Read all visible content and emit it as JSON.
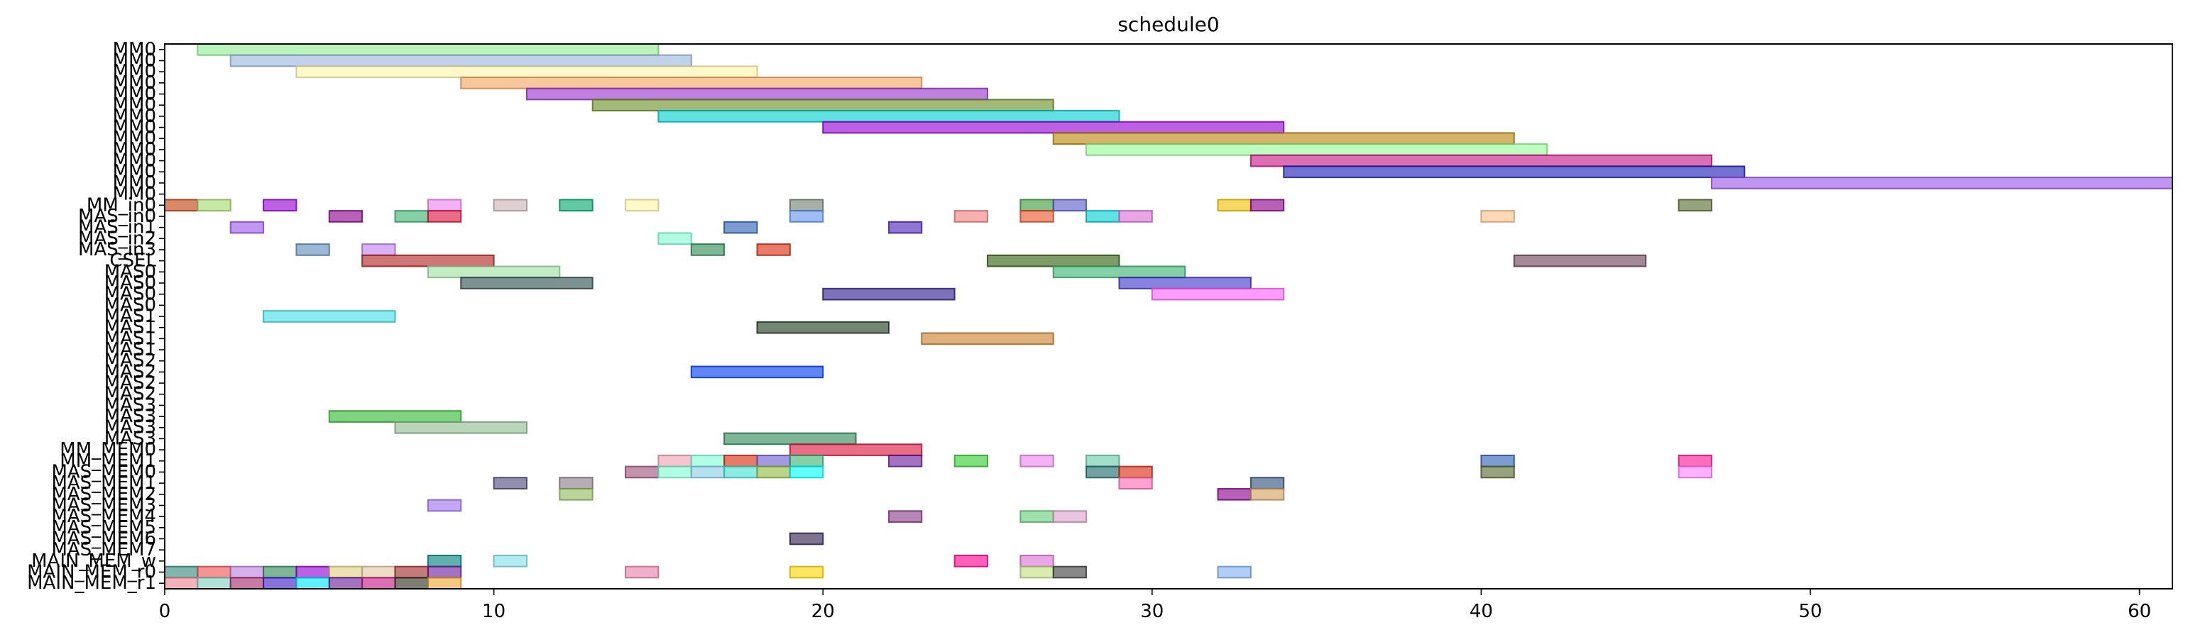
{
  "chart_data": {
    "type": "gantt",
    "title": "schedule0",
    "xlim": [
      0,
      61
    ],
    "x_ticks": [
      0,
      10,
      20,
      30,
      40,
      50,
      60
    ],
    "rows": [
      "MM0",
      "MM0",
      "MM0",
      "MM0",
      "MM0",
      "MM0",
      "MM0",
      "MM0",
      "MM0",
      "MM0",
      "MM0",
      "MM0",
      "MM0",
      "MM0",
      "MM_in0",
      "MAS_in0",
      "MAS_in1",
      "MAS_in2",
      "MAS_in3",
      "CSEL",
      "MAS0",
      "MAS0",
      "MAS0",
      "MAS0",
      "MAS1",
      "MAS1",
      "MAS1",
      "MAS1",
      "MAS2",
      "MAS2",
      "MAS2",
      "MAS2",
      "MAS3",
      "MAS3",
      "MAS3",
      "MAS3",
      "MM_MEM0",
      "MM_MEM1",
      "MAS_MEM0",
      "MAS_MEM1",
      "MAS_MEM2",
      "MAS_MEM3",
      "MAS_MEM4",
      "MAS_MEM5",
      "MAS_MEM6",
      "MAS_MEM7",
      "MAIN_MEM_w",
      "MAIN_MEM_r0",
      "MAIN_MEM_r1"
    ],
    "tasks": [
      {
        "row": 0,
        "start": 1,
        "end": 15,
        "color": "#90ee90"
      },
      {
        "row": 1,
        "start": 2,
        "end": 16,
        "color": "#9ab8dd"
      },
      {
        "row": 2,
        "start": 4,
        "end": 18,
        "color": "#fff3a8"
      },
      {
        "row": 3,
        "start": 9,
        "end": 23,
        "color": "#f4a460"
      },
      {
        "row": 4,
        "start": 11,
        "end": 25,
        "color": "#9932cc"
      },
      {
        "row": 5,
        "start": 13,
        "end": 27,
        "color": "#6b8e23"
      },
      {
        "row": 6,
        "start": 15,
        "end": 29,
        "color": "#00ced1"
      },
      {
        "row": 7,
        "start": 20,
        "end": 34,
        "color": "#9400d3"
      },
      {
        "row": 8,
        "start": 27,
        "end": 41,
        "color": "#b8860b"
      },
      {
        "row": 9,
        "start": 28,
        "end": 42,
        "color": "#98fb98"
      },
      {
        "row": 10,
        "start": 33,
        "end": 47,
        "color": "#c71585"
      },
      {
        "row": 11,
        "start": 34,
        "end": 48,
        "color": "#1c1cb8"
      },
      {
        "row": 12,
        "start": 47,
        "end": 61,
        "color": "#9955e8"
      },
      {
        "row": 14,
        "start": 0,
        "end": 1,
        "color": "#c2410c"
      },
      {
        "row": 14,
        "start": 1,
        "end": 2,
        "color": "#a4d96c"
      },
      {
        "row": 14,
        "start": 3,
        "end": 4,
        "color": "#9400d3"
      },
      {
        "row": 14,
        "start": 8,
        "end": 9,
        "color": "#ee82ee"
      },
      {
        "row": 14,
        "start": 10,
        "end": 11,
        "color": "#c9b3b3"
      },
      {
        "row": 14,
        "start": 12,
        "end": 13,
        "color": "#00a86b"
      },
      {
        "row": 14,
        "start": 14,
        "end": 15,
        "color": "#fff3a8"
      },
      {
        "row": 14,
        "start": 19,
        "end": 20,
        "color": "#708070"
      },
      {
        "row": 14,
        "start": 26,
        "end": 27,
        "color": "#3c9a3c"
      },
      {
        "row": 14,
        "start": 27,
        "end": 28,
        "color": "#5b5bc8"
      },
      {
        "row": 14,
        "start": 32,
        "end": 33,
        "color": "#f0c000"
      },
      {
        "row": 14,
        "start": 33,
        "end": 34,
        "color": "#8b008b"
      },
      {
        "row": 14,
        "start": 46,
        "end": 47,
        "color": "#556b2f"
      },
      {
        "row": 15,
        "start": 5,
        "end": 6,
        "color": "#8b008b"
      },
      {
        "row": 15,
        "start": 7,
        "end": 8,
        "color": "#3cb371"
      },
      {
        "row": 15,
        "start": 8,
        "end": 9,
        "color": "#dc143c"
      },
      {
        "row": 15,
        "start": 19,
        "end": 20,
        "color": "#6495ed"
      },
      {
        "row": 15,
        "start": 24,
        "end": 25,
        "color": "#f08080"
      },
      {
        "row": 15,
        "start": 26,
        "end": 27,
        "color": "#e9552c"
      },
      {
        "row": 15,
        "start": 28,
        "end": 29,
        "color": "#00ced1"
      },
      {
        "row": 15,
        "start": 29,
        "end": 30,
        "color": "#da70d6"
      },
      {
        "row": 15,
        "start": 40,
        "end": 41,
        "color": "#ffc08a"
      },
      {
        "row": 16,
        "start": 2,
        "end": 3,
        "color": "#9955e8"
      },
      {
        "row": 16,
        "start": 17,
        "end": 18,
        "color": "#2d5fb5"
      },
      {
        "row": 16,
        "start": 22,
        "end": 23,
        "color": "#4b22b8"
      },
      {
        "row": 17,
        "start": 15,
        "end": 16,
        "color": "#7fffd4"
      },
      {
        "row": 18,
        "start": 4,
        "end": 5,
        "color": "#5f8cbf"
      },
      {
        "row": 18,
        "start": 6,
        "end": 7,
        "color": "#c080f0"
      },
      {
        "row": 18,
        "start": 16,
        "end": 17,
        "color": "#2e8b57"
      },
      {
        "row": 18,
        "start": 18,
        "end": 19,
        "color": "#d9290c"
      },
      {
        "row": 19,
        "start": 6,
        "end": 10,
        "color": "#b22222"
      },
      {
        "row": 19,
        "start": 25,
        "end": 29,
        "color": "#2f5d0f"
      },
      {
        "row": 19,
        "start": 41,
        "end": 45,
        "color": "#6b3f58"
      },
      {
        "row": 20,
        "start": 8,
        "end": 12,
        "color": "#a0e0a0"
      },
      {
        "row": 20,
        "start": 27,
        "end": 31,
        "color": "#3cb371"
      },
      {
        "row": 21,
        "start": 9,
        "end": 13,
        "color": "#2f4f4f"
      },
      {
        "row": 21,
        "start": 29,
        "end": 33,
        "color": "#3c35c8"
      },
      {
        "row": 22,
        "start": 20,
        "end": 24,
        "color": "#2d1c8e"
      },
      {
        "row": 22,
        "start": 30,
        "end": 34,
        "color": "#ff60ff"
      },
      {
        "row": 24,
        "start": 3,
        "end": 7,
        "color": "#40e0e8"
      },
      {
        "row": 25,
        "start": 18,
        "end": 22,
        "color": "#1e3a1e"
      },
      {
        "row": 26,
        "start": 23,
        "end": 27,
        "color": "#c87f2e"
      },
      {
        "row": 29,
        "start": 16,
        "end": 20,
        "color": "#0039f0"
      },
      {
        "row": 33,
        "start": 5,
        "end": 9,
        "color": "#32b832"
      },
      {
        "row": 34,
        "start": 7,
        "end": 11,
        "color": "#8fbc8f"
      },
      {
        "row": 35,
        "start": 17,
        "end": 21,
        "color": "#2e8b57"
      },
      {
        "row": 36,
        "start": 19,
        "end": 23,
        "color": "#dc143c"
      },
      {
        "row": 37,
        "start": 15,
        "end": 16,
        "color": "#f0a0b0"
      },
      {
        "row": 37,
        "start": 16,
        "end": 17,
        "color": "#7fffd4"
      },
      {
        "row": 37,
        "start": 17,
        "end": 18,
        "color": "#d9290c"
      },
      {
        "row": 37,
        "start": 18,
        "end": 19,
        "color": "#6a5acd"
      },
      {
        "row": 37,
        "start": 19,
        "end": 20,
        "color": "#3cb371"
      },
      {
        "row": 37,
        "start": 22,
        "end": 23,
        "color": "#6a1b9a"
      },
      {
        "row": 37,
        "start": 24,
        "end": 25,
        "color": "#32cd32"
      },
      {
        "row": 37,
        "start": 26,
        "end": 27,
        "color": "#ee82ee"
      },
      {
        "row": 37,
        "start": 28,
        "end": 29,
        "color": "#66cdaa"
      },
      {
        "row": 37,
        "start": 40,
        "end": 41,
        "color": "#2d5fb5"
      },
      {
        "row": 37,
        "start": 46,
        "end": 47,
        "color": "#ff1493"
      },
      {
        "row": 38,
        "start": 14,
        "end": 15,
        "color": "#a0507a"
      },
      {
        "row": 38,
        "start": 15,
        "end": 16,
        "color": "#7fffd4"
      },
      {
        "row": 38,
        "start": 16,
        "end": 17,
        "color": "#87ceeb"
      },
      {
        "row": 38,
        "start": 17,
        "end": 18,
        "color": "#40e0d0"
      },
      {
        "row": 38,
        "start": 18,
        "end": 19,
        "color": "#8fbc3f"
      },
      {
        "row": 38,
        "start": 19,
        "end": 20,
        "color": "#00ffff"
      },
      {
        "row": 38,
        "start": 28,
        "end": 29,
        "color": "#1b6b6b"
      },
      {
        "row": 38,
        "start": 29,
        "end": 30,
        "color": "#d9290c"
      },
      {
        "row": 38,
        "start": 40,
        "end": 41,
        "color": "#556b2f"
      },
      {
        "row": 38,
        "start": 46,
        "end": 47,
        "color": "#ff80ff"
      },
      {
        "row": 39,
        "start": 10,
        "end": 11,
        "color": "#4b4b7a"
      },
      {
        "row": 39,
        "start": 12,
        "end": 13,
        "color": "#8b7b8b"
      },
      {
        "row": 39,
        "start": 29,
        "end": 30,
        "color": "#ff69b4"
      },
      {
        "row": 39,
        "start": 33,
        "end": 34,
        "color": "#2f4f7f"
      },
      {
        "row": 40,
        "start": 12,
        "end": 13,
        "color": "#8fbc5f"
      },
      {
        "row": 40,
        "start": 32,
        "end": 33,
        "color": "#8b008b"
      },
      {
        "row": 40,
        "start": 33,
        "end": 34,
        "color": "#d2a060"
      },
      {
        "row": 41,
        "start": 8,
        "end": 9,
        "color": "#a070f0"
      },
      {
        "row": 42,
        "start": 22,
        "end": 23,
        "color": "#8b3a8b"
      },
      {
        "row": 42,
        "start": 26,
        "end": 27,
        "color": "#66cd7a"
      },
      {
        "row": 42,
        "start": 27,
        "end": 28,
        "color": "#dda0cc"
      },
      {
        "row": 44,
        "start": 19,
        "end": 20,
        "color": "#2f1f4f"
      },
      {
        "row": 46,
        "start": 8,
        "end": 9,
        "color": "#008080"
      },
      {
        "row": 46,
        "start": 10,
        "end": 11,
        "color": "#80e0e8"
      },
      {
        "row": 46,
        "start": 24,
        "end": 25,
        "color": "#ff0090"
      },
      {
        "row": 46,
        "start": 26,
        "end": 27,
        "color": "#da70d6"
      },
      {
        "row": 47,
        "start": 0,
        "end": 1,
        "color": "#2e8b7a"
      },
      {
        "row": 47,
        "start": 1,
        "end": 2,
        "color": "#f05050"
      },
      {
        "row": 47,
        "start": 2,
        "end": 3,
        "color": "#ba80e0"
      },
      {
        "row": 47,
        "start": 3,
        "end": 4,
        "color": "#2e8b57"
      },
      {
        "row": 47,
        "start": 4,
        "end": 5,
        "color": "#9400d3"
      },
      {
        "row": 47,
        "start": 5,
        "end": 6,
        "color": "#e0d080"
      },
      {
        "row": 47,
        "start": 6,
        "end": 7,
        "color": "#e0c8a0"
      },
      {
        "row": 47,
        "start": 7,
        "end": 8,
        "color": "#a52a2a"
      },
      {
        "row": 47,
        "start": 8,
        "end": 9,
        "color": "#6a1b9a"
      },
      {
        "row": 47,
        "start": 14,
        "end": 15,
        "color": "#e87fa8"
      },
      {
        "row": 47,
        "start": 19,
        "end": 20,
        "color": "#ffd700"
      },
      {
        "row": 47,
        "start": 26,
        "end": 27,
        "color": "#c0e080"
      },
      {
        "row": 47,
        "start": 27,
        "end": 28,
        "color": "#3f3f3f"
      },
      {
        "row": 47,
        "start": 32,
        "end": 33,
        "color": "#7fb0f0"
      },
      {
        "row": 48,
        "start": 0,
        "end": 1,
        "color": "#f08090"
      },
      {
        "row": 48,
        "start": 1,
        "end": 2,
        "color": "#80d0c0"
      },
      {
        "row": 48,
        "start": 2,
        "end": 3,
        "color": "#a52a6a"
      },
      {
        "row": 48,
        "start": 3,
        "end": 4,
        "color": "#3c1cc8"
      },
      {
        "row": 48,
        "start": 4,
        "end": 5,
        "color": "#00e5ff"
      },
      {
        "row": 48,
        "start": 5,
        "end": 6,
        "color": "#6a1b9a"
      },
      {
        "row": 48,
        "start": 6,
        "end": 7,
        "color": "#c71585"
      },
      {
        "row": 48,
        "start": 7,
        "end": 8,
        "color": "#2f2f1f"
      },
      {
        "row": 48,
        "start": 8,
        "end": 9,
        "color": "#f0a830"
      }
    ]
  }
}
